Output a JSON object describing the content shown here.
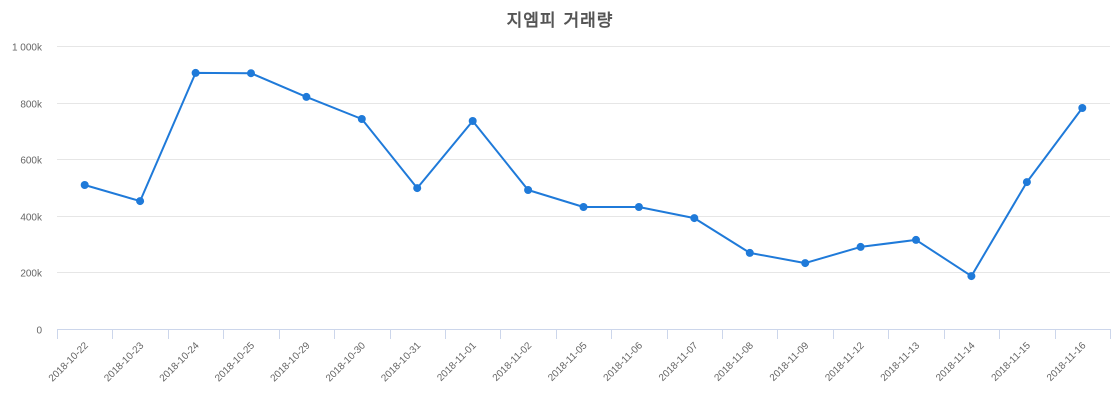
{
  "chart_data": {
    "type": "line",
    "title": "지엠피 거래량",
    "xlabel": "",
    "ylabel": "",
    "ylim": [
      0,
      1000000
    ],
    "yticks": [
      0,
      200000,
      400000,
      600000,
      800000,
      1000000
    ],
    "ytick_labels": [
      "0",
      "200k",
      "400k",
      "600k",
      "800k",
      "1 000k"
    ],
    "grid": true,
    "legend": null,
    "categories": [
      "2018-10-22",
      "2018-10-23",
      "2018-10-24",
      "2018-10-25",
      "2018-10-29",
      "2018-10-30",
      "2018-10-31",
      "2018-11-01",
      "2018-11-02",
      "2018-11-05",
      "2018-11-06",
      "2018-11-07",
      "2018-11-08",
      "2018-11-09",
      "2018-11-12",
      "2018-11-13",
      "2018-11-14",
      "2018-11-15",
      "2018-11-16"
    ],
    "series": [
      {
        "name": "거래량",
        "color": "#1f7ad9",
        "values": [
          509000,
          452000,
          905000,
          904000,
          820000,
          742000,
          498000,
          735000,
          491000,
          431000,
          431000,
          392000,
          269000,
          233000,
          290000,
          315000,
          187000,
          519000,
          781000
        ]
      }
    ]
  },
  "colors": {
    "line": "#1f7ad9",
    "grid": "#e6e6e6",
    "axis": "#ccd6eb",
    "title": "#555555",
    "tick_text": "#666666"
  }
}
